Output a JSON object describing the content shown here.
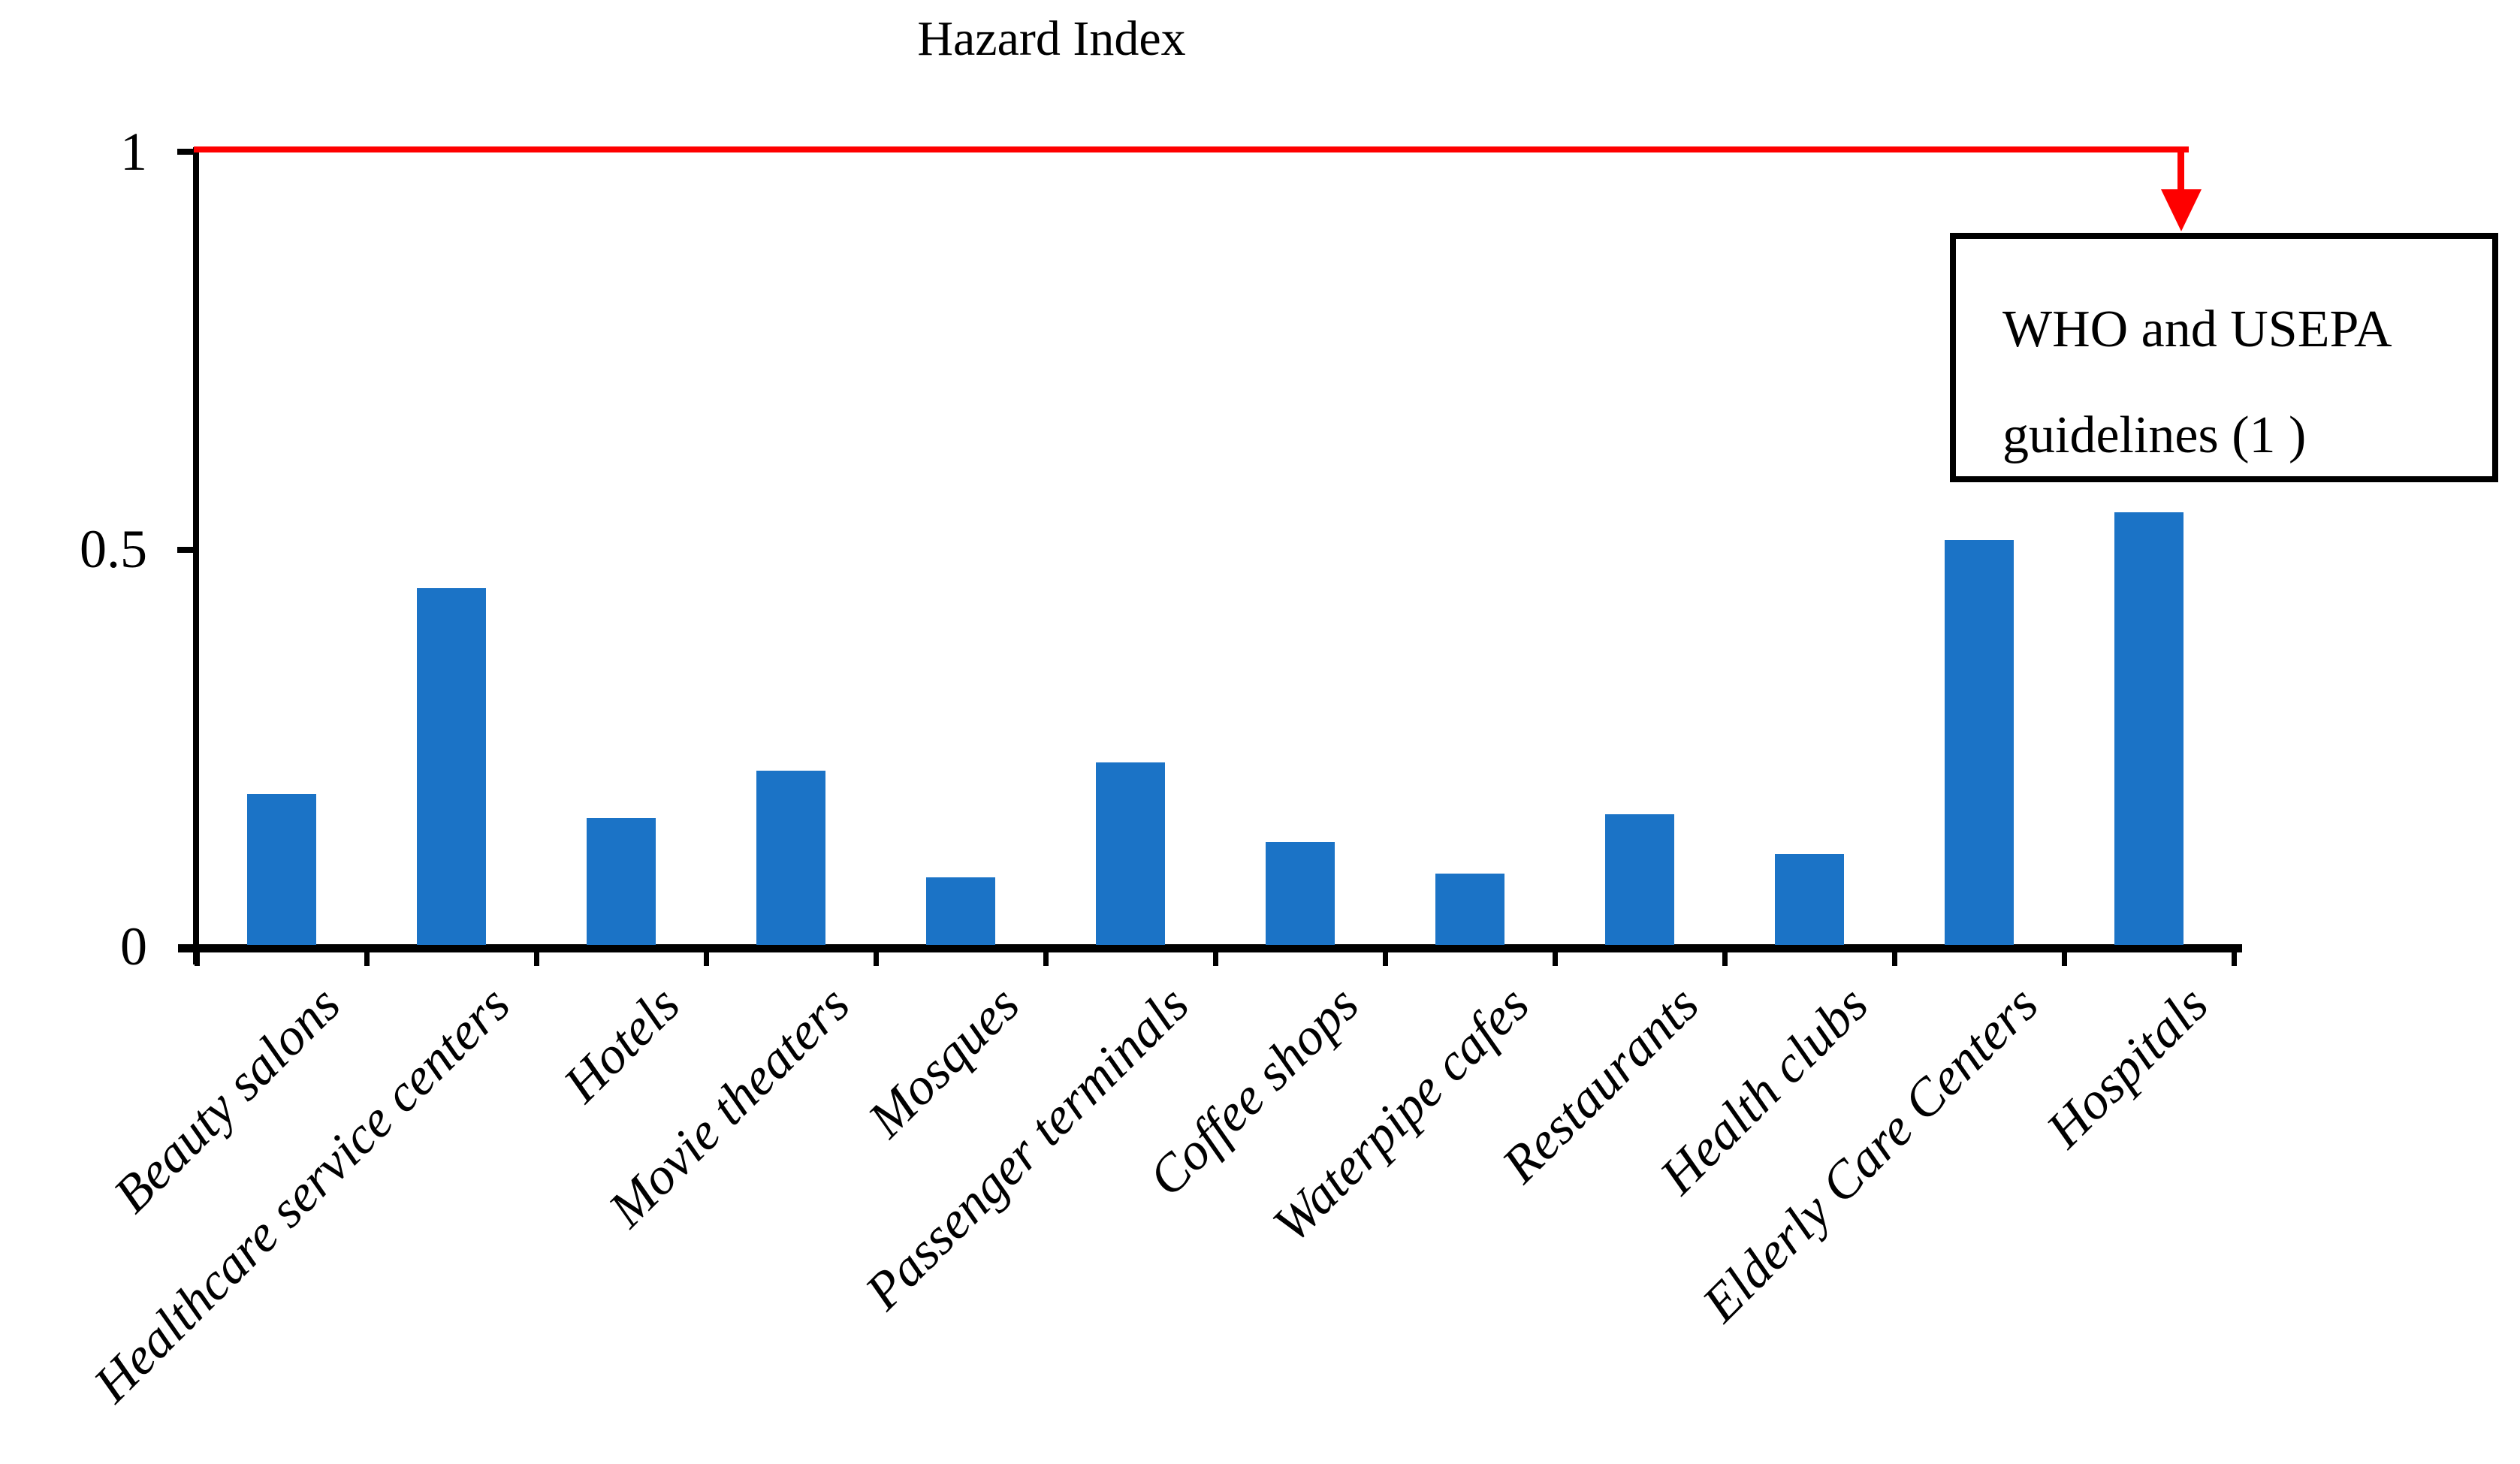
{
  "chart_data": {
    "type": "bar",
    "title": "Hazard Index",
    "categories": [
      "Beauty salons",
      "Healthcare service centers",
      "Hotels",
      "Movie theaters",
      "Mosques",
      "Passenger terminals",
      "Coffee shops",
      "Waterpipe cafes",
      "Restaurants",
      "Health clubs",
      "Elderly Care Centers",
      "Hospitals"
    ],
    "values": [
      0.19,
      0.45,
      0.16,
      0.22,
      0.085,
      0.23,
      0.13,
      0.09,
      0.165,
      0.115,
      0.51,
      0.545
    ],
    "xlabel": "",
    "ylabel": "",
    "ylim": [
      0,
      1
    ],
    "yticks": [
      {
        "value": 0,
        "label": "0"
      },
      {
        "value": 0.5,
        "label": "0.5"
      },
      {
        "value": 1,
        "label": "1"
      }
    ],
    "grid": false,
    "legend_position": "none",
    "bar_color": "#1B73C6",
    "axis_color": "#000000",
    "guideline": {
      "value": 1,
      "color": "#FE0000",
      "annotation_line1": "WHO and USEPA",
      "annotation_line2": "guidelines (1 )"
    }
  }
}
